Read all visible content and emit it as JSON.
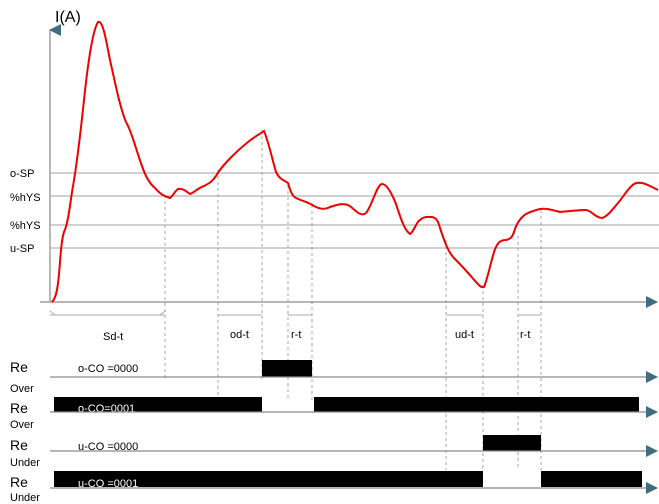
{
  "y_axis_label": "I(A)",
  "levels": {
    "o_sp": "o-SP",
    "hys_upper": "%hYS",
    "hys_lower": "%hYS",
    "u_sp": "u-SP"
  },
  "intervals": {
    "sd_t": "Sd-t",
    "od_t": "od-t",
    "r_t_1": "r-t",
    "ud_t": "ud-t",
    "r_t_2": "r-t"
  },
  "rows": {
    "re_1": "Re",
    "o_co_0000": "o-CO =0000",
    "over_1": "Over",
    "re_2": "Re",
    "o_co_0001": "o-CO=0001",
    "over_2": "Over",
    "re_3": "Re",
    "u_co_0000": "u-CO =0000",
    "under_1": "Under",
    "re_4": "Re",
    "u_co_0001": "u-CO =0001",
    "under_2": "Under"
  },
  "colors": {
    "curve": "#ee0000",
    "arrow": "#3e6e80",
    "relay_bar": "#000000",
    "guide": "#a0a0a0"
  }
}
